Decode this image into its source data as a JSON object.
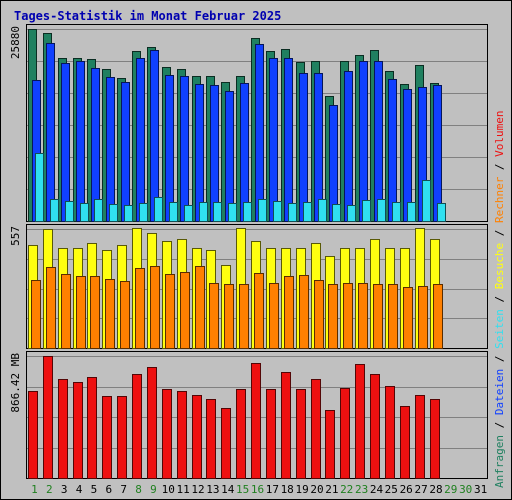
{
  "title": "Tages-Statistik im Monat Februar 2025",
  "colors": {
    "title": "#0000b0",
    "background": "#c0c0c0",
    "plot_border": "#000000",
    "grid": "#808080",
    "axis_text": "#000000",
    "weekend_day": "#208020",
    "weekday_day": "#000000",
    "anfragen": "#208060",
    "dateien": "#1040ff",
    "seiten": "#30e0f0",
    "besuche": "#ffff10",
    "rechner": "#ff8000",
    "volumen": "#ee1010"
  },
  "chart_data": {
    "type": "bar",
    "categories": [
      "1",
      "2",
      "3",
      "4",
      "5",
      "6",
      "7",
      "8",
      "9",
      "10",
      "11",
      "12",
      "13",
      "14",
      "15",
      "16",
      "17",
      "18",
      "19",
      "20",
      "21",
      "22",
      "23",
      "24",
      "25",
      "26",
      "27",
      "28",
      "29",
      "30",
      "31"
    ],
    "weekend_days": [
      "1",
      "2",
      "8",
      "9",
      "15",
      "16",
      "22",
      "23",
      "29",
      "30"
    ],
    "side_legend": [
      {
        "text": "Anfragen",
        "color_key": "anfragen"
      },
      {
        "text": " / ",
        "color_key": "axis_text"
      },
      {
        "text": "Dateien",
        "color_key": "dateien"
      },
      {
        "text": " / ",
        "color_key": "axis_text"
      },
      {
        "text": "Seiten",
        "color_key": "seiten"
      },
      {
        "text": " / ",
        "color_key": "axis_text"
      },
      {
        "text": "Besuche",
        "color_key": "besuche"
      },
      {
        "text": " / ",
        "color_key": "axis_text"
      },
      {
        "text": "Rechner",
        "color_key": "rechner"
      },
      {
        "text": " / ",
        "color_key": "axis_text"
      },
      {
        "text": "Volumen",
        "color_key": "volumen"
      }
    ],
    "panels": [
      {
        "ymax_label": "25880",
        "ymax": 25880,
        "series": [
          {
            "name": "Anfragen",
            "color_key": "anfragen",
            "values": [
              25880,
              25300,
              22000,
              22000,
              21900,
              20500,
              19300,
              22900,
              23500,
              20700,
              20500,
              19500,
              19500,
              18700,
              19500,
              24700,
              22900,
              23200,
              21400,
              21500,
              16900,
              21500,
              22400,
              23000,
              20200,
              18500,
              21000,
              18600,
              0,
              0,
              0
            ]
          },
          {
            "name": "Dateien",
            "color_key": "dateien",
            "values": [
              19000,
              24000,
              21300,
              21500,
              20600,
              19400,
              18700,
              22000,
              23000,
              19700,
              19500,
              18500,
              18300,
              17500,
              18600,
              23800,
              22000,
              22000,
              20000,
              20000,
              15700,
              20200,
              21500,
              21500,
              19200,
              17800,
              18000,
              18300,
              0,
              0,
              0
            ]
          },
          {
            "name": "Seiten",
            "color_key": "seiten",
            "values": [
              9200,
              2900,
              2700,
              2400,
              3000,
              2300,
              2200,
              2400,
              3200,
              2600,
              2200,
              2500,
              2500,
              2400,
              2500,
              2900,
              2700,
              2400,
              2600,
              2900,
              2300,
              2200,
              2800,
              2900,
              2600,
              2500,
              5500,
              2400,
              0,
              0,
              0
            ]
          }
        ]
      },
      {
        "ymax_label": "557",
        "ymax": 557,
        "series": [
          {
            "name": "Besuche",
            "color_key": "besuche",
            "values": [
              480,
              557,
              470,
              470,
              490,
              460,
              480,
              560,
              540,
              500,
              510,
              470,
              460,
              390,
              560,
              500,
              470,
              470,
              470,
              490,
              430,
              470,
              470,
              510,
              470,
              470,
              560,
              510,
              0,
              0,
              0
            ]
          },
          {
            "name": "Rechner",
            "color_key": "rechner",
            "values": [
              320,
              380,
              345,
              335,
              335,
              325,
              315,
              375,
              385,
              345,
              355,
              385,
              305,
              300,
              300,
              350,
              305,
              335,
              340,
              320,
              300,
              305,
              305,
              300,
              300,
              285,
              290,
              300,
              0,
              0,
              0
            ]
          }
        ]
      },
      {
        "ymax_label": "866.42 MB",
        "ymax": 866.42,
        "series": [
          {
            "name": "Volumen",
            "color_key": "volumen",
            "values": [
              620,
              866,
              700,
              680,
              720,
              580,
              580,
              740,
              790,
              630,
              620,
              590,
              560,
              500,
              630,
              820,
              630,
              750,
              630,
              700,
              480,
              640,
              810,
              740,
              650,
              510,
              590,
              560,
              0,
              0,
              0
            ]
          }
        ]
      }
    ]
  }
}
